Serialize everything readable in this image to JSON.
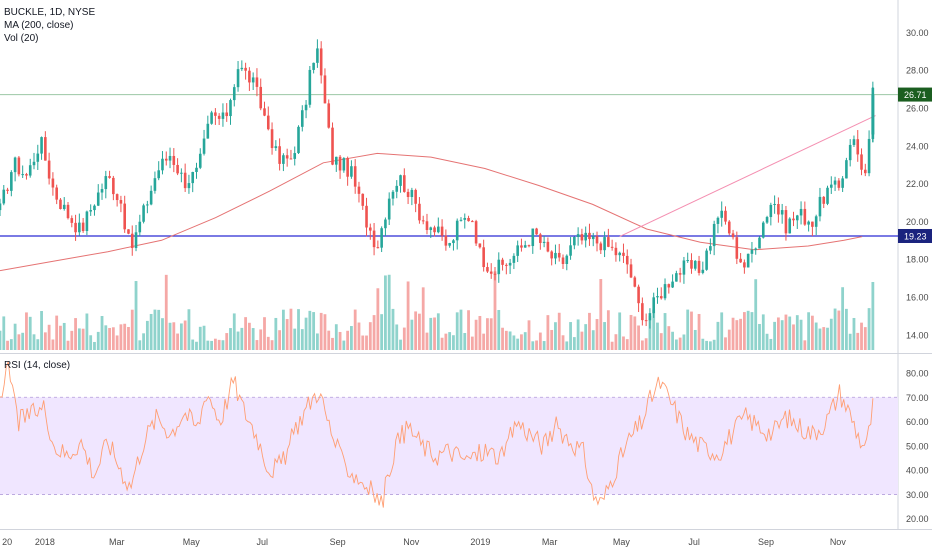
{
  "header": {
    "symbol": "BUCKLE, 1D, NYSE",
    "ma_label": "MA (200, close)",
    "vol_label": "Vol (20)"
  },
  "rsi_panel": {
    "label": "RSI (14, close)"
  },
  "colors": {
    "up": "#26a69a",
    "down": "#ef5350",
    "volume_up": "#8fd3cc",
    "volume_down": "#f5a8a6",
    "ma": "#e57373",
    "trendline": "#f48fb1",
    "support": "#2b2bd4",
    "resistance": "#9cc7a4",
    "rsi_line": "#ff9e73",
    "rsi_band": "#f0e6ff",
    "price_badge": "#1b5e20",
    "support_badge": "#1a237e"
  },
  "chart_data": [
    {
      "type": "candlestick",
      "title": "BUCKLE, 1D, NYSE",
      "ylim": [
        13.2,
        31.5
      ],
      "y_ticks": [
        "30.00",
        "28.00",
        "26.00",
        "24.00",
        "22.00",
        "20.00",
        "18.00",
        "16.00",
        "14.00"
      ],
      "x_ticks": [
        "20",
        "2018",
        "Mar",
        "May",
        "Jul",
        "Sep",
        "Nov",
        "2019",
        "Mar",
        "May",
        "Jul",
        "Sep",
        "Nov"
      ],
      "last_price": "26.71",
      "horizontal_levels": [
        {
          "name": "support",
          "value": 19.23,
          "label": "19.23"
        },
        {
          "name": "resistance",
          "value": 26.71
        }
      ],
      "trendline": {
        "from": [
          0.69,
          19.2
        ],
        "to": [
          0.975,
          25.6
        ]
      },
      "close_path": [
        [
          0.0,
          20.6
        ],
        [
          0.015,
          23.1
        ],
        [
          0.03,
          22.4
        ],
        [
          0.045,
          24.3
        ],
        [
          0.06,
          21.6
        ],
        [
          0.075,
          20.4
        ],
        [
          0.09,
          19.5
        ],
        [
          0.105,
          21.1
        ],
        [
          0.12,
          22.4
        ],
        [
          0.135,
          21.0
        ],
        [
          0.145,
          18.4
        ],
        [
          0.16,
          20.5
        ],
        [
          0.175,
          22.7
        ],
        [
          0.19,
          23.6
        ],
        [
          0.205,
          22.1
        ],
        [
          0.22,
          22.6
        ],
        [
          0.235,
          25.6
        ],
        [
          0.25,
          25.3
        ],
        [
          0.265,
          28.2
        ],
        [
          0.28,
          27.5
        ],
        [
          0.29,
          26.2
        ],
        [
          0.3,
          24.8
        ],
        [
          0.31,
          23.1
        ],
        [
          0.325,
          23.4
        ],
        [
          0.34,
          26.2
        ],
        [
          0.352,
          29.5
        ],
        [
          0.36,
          26.8
        ],
        [
          0.37,
          23.3
        ],
        [
          0.39,
          22.7
        ],
        [
          0.405,
          20.4
        ],
        [
          0.42,
          18.7
        ],
        [
          0.435,
          21.7
        ],
        [
          0.445,
          22.3
        ],
        [
          0.455,
          21.6
        ],
        [
          0.47,
          20.2
        ],
        [
          0.485,
          19.5
        ],
        [
          0.5,
          18.6
        ],
        [
          0.51,
          19.8
        ],
        [
          0.525,
          20.4
        ],
        [
          0.535,
          18.2
        ],
        [
          0.55,
          17.4
        ],
        [
          0.565,
          17.8
        ],
        [
          0.58,
          18.6
        ],
        [
          0.595,
          19.4
        ],
        [
          0.61,
          18.3
        ],
        [
          0.625,
          17.7
        ],
        [
          0.64,
          19.0
        ],
        [
          0.655,
          19.0
        ],
        [
          0.67,
          18.9
        ],
        [
          0.685,
          18.4
        ],
        [
          0.7,
          17.7
        ],
        [
          0.71,
          15.6
        ],
        [
          0.72,
          14.9
        ],
        [
          0.735,
          16.2
        ],
        [
          0.75,
          17.2
        ],
        [
          0.765,
          17.6
        ],
        [
          0.78,
          17.4
        ],
        [
          0.79,
          18.8
        ],
        [
          0.8,
          20.5
        ],
        [
          0.81,
          19.8
        ],
        [
          0.82,
          18.4
        ],
        [
          0.83,
          17.6
        ],
        [
          0.845,
          19.4
        ],
        [
          0.86,
          21.2
        ],
        [
          0.875,
          19.8
        ],
        [
          0.89,
          20.4
        ],
        [
          0.905,
          20.0
        ],
        [
          0.92,
          21.6
        ],
        [
          0.935,
          21.8
        ],
        [
          0.948,
          24.6
        ],
        [
          0.958,
          23.2
        ],
        [
          0.965,
          22.3
        ],
        [
          0.972,
          26.71
        ]
      ],
      "ma200_path": [
        [
          0.0,
          17.4
        ],
        [
          0.06,
          17.9
        ],
        [
          0.12,
          18.4
        ],
        [
          0.18,
          19.0
        ],
        [
          0.24,
          20.2
        ],
        [
          0.3,
          21.6
        ],
        [
          0.36,
          23.1
        ],
        [
          0.42,
          23.6
        ],
        [
          0.48,
          23.4
        ],
        [
          0.54,
          22.8
        ],
        [
          0.6,
          21.9
        ],
        [
          0.66,
          20.9
        ],
        [
          0.72,
          19.6
        ],
        [
          0.78,
          18.9
        ],
        [
          0.84,
          18.5
        ],
        [
          0.9,
          18.7
        ],
        [
          0.94,
          19.0
        ],
        [
          0.96,
          19.2
        ]
      ]
    },
    {
      "type": "line",
      "title": "RSI (14, close)",
      "ylim": [
        17,
        87
      ],
      "y_ticks": [
        "80.00",
        "70.00",
        "60.00",
        "50.00",
        "40.00",
        "30.00",
        "20.00"
      ],
      "band": [
        30,
        70
      ],
      "values_path": [
        [
          0.0,
          72
        ],
        [
          0.01,
          81
        ],
        [
          0.02,
          60
        ],
        [
          0.035,
          63
        ],
        [
          0.05,
          66
        ],
        [
          0.06,
          50
        ],
        [
          0.075,
          46
        ],
        [
          0.09,
          52
        ],
        [
          0.105,
          38
        ],
        [
          0.12,
          52
        ],
        [
          0.135,
          40
        ],
        [
          0.145,
          33
        ],
        [
          0.16,
          52
        ],
        [
          0.175,
          62
        ],
        [
          0.19,
          55
        ],
        [
          0.205,
          64
        ],
        [
          0.22,
          57
        ],
        [
          0.23,
          73
        ],
        [
          0.245,
          60
        ],
        [
          0.26,
          77
        ],
        [
          0.27,
          66
        ],
        [
          0.285,
          55
        ],
        [
          0.3,
          40
        ],
        [
          0.315,
          43
        ],
        [
          0.33,
          58
        ],
        [
          0.345,
          68
        ],
        [
          0.355,
          73
        ],
        [
          0.365,
          60
        ],
        [
          0.38,
          44
        ],
        [
          0.395,
          38
        ],
        [
          0.41,
          33
        ],
        [
          0.425,
          26
        ],
        [
          0.44,
          50
        ],
        [
          0.455,
          58
        ],
        [
          0.47,
          50
        ],
        [
          0.485,
          46
        ],
        [
          0.5,
          48
        ],
        [
          0.52,
          44
        ],
        [
          0.54,
          48
        ],
        [
          0.56,
          45
        ],
        [
          0.575,
          60
        ],
        [
          0.59,
          55
        ],
        [
          0.605,
          50
        ],
        [
          0.62,
          58
        ],
        [
          0.635,
          52
        ],
        [
          0.65,
          47
        ],
        [
          0.66,
          30
        ],
        [
          0.67,
          26
        ],
        [
          0.685,
          40
        ],
        [
          0.7,
          52
        ],
        [
          0.715,
          60
        ],
        [
          0.725,
          70
        ],
        [
          0.735,
          76
        ],
        [
          0.75,
          66
        ],
        [
          0.765,
          55
        ],
        [
          0.78,
          50
        ],
        [
          0.8,
          47
        ],
        [
          0.815,
          55
        ],
        [
          0.83,
          62
        ],
        [
          0.845,
          58
        ],
        [
          0.86,
          55
        ],
        [
          0.875,
          62
        ],
        [
          0.89,
          58
        ],
        [
          0.905,
          55
        ],
        [
          0.92,
          60
        ],
        [
          0.935,
          72
        ],
        [
          0.948,
          62
        ],
        [
          0.958,
          52
        ],
        [
          0.965,
          50
        ],
        [
          0.972,
          66
        ]
      ]
    }
  ]
}
